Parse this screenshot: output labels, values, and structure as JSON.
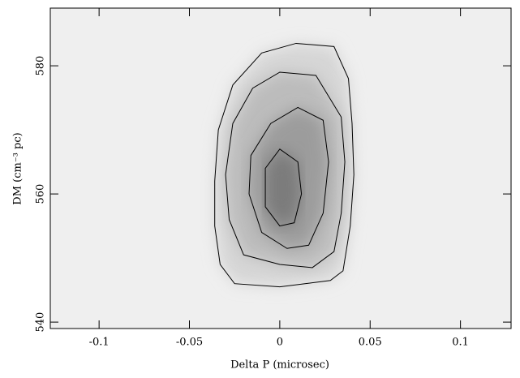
{
  "chart_data": {
    "type": "image",
    "xlabel": "Delta P (microsec)",
    "ylabel": "DM (cm⁻³ pc)",
    "xlim": [
      -0.127,
      0.128
    ],
    "ylim": [
      539,
      589
    ],
    "xticks": [
      -0.1,
      -0.05,
      0,
      0.05,
      0.1
    ],
    "yticks": [
      540,
      560,
      580
    ],
    "background": "#efefef",
    "contour_color": "#000000",
    "fills": [
      "#d6d6d6",
      "#bcbcbc",
      "#9c9c9c",
      "#7c7c7c"
    ],
    "contours": [
      {
        "x": [
          0.009,
          0.03,
          0.038,
          0.04,
          0.041,
          0.039,
          0.035,
          0.028,
          0.0,
          -0.025,
          -0.033,
          -0.036,
          -0.036,
          -0.034,
          -0.026,
          -0.01,
          0.009
        ],
        "y": [
          583.5,
          583,
          578,
          571,
          563,
          555,
          548,
          546.5,
          545.5,
          546,
          549,
          555,
          562,
          570,
          577,
          582,
          583.5
        ]
      },
      {
        "x": [
          0.0,
          0.02,
          0.034,
          0.036,
          0.034,
          0.03,
          0.018,
          0.0,
          -0.02,
          -0.028,
          -0.03,
          -0.026,
          -0.015,
          0.0
        ],
        "y": [
          579,
          578.5,
          572,
          565,
          557,
          551,
          548.5,
          549,
          550.5,
          556,
          563,
          571,
          576.5,
          579
        ]
      },
      {
        "x": [
          0.01,
          0.024,
          0.027,
          0.024,
          0.016,
          0.004,
          -0.01,
          -0.017,
          -0.016,
          -0.005,
          0.01
        ],
        "y": [
          573.5,
          571.5,
          565,
          557,
          552,
          551.5,
          554,
          560,
          566,
          571,
          573.5
        ]
      },
      {
        "x": [
          0.0,
          0.01,
          0.012,
          0.008,
          0.0,
          -0.008,
          -0.008,
          0.0
        ],
        "y": [
          567,
          565,
          560,
          555.5,
          555,
          558,
          564,
          567
        ]
      }
    ]
  }
}
